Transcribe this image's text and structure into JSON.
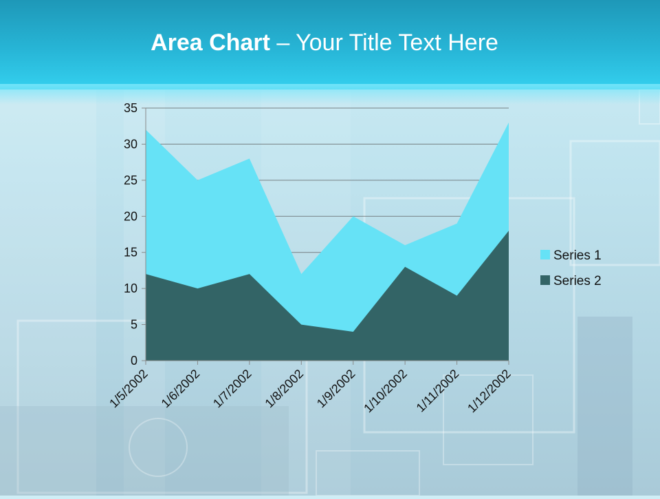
{
  "slide": {
    "title_bold": "Area Chart",
    "title_rest": " – Your Title Text Here"
  },
  "colors": {
    "series1": "#66e2f6",
    "series2": "#336466",
    "grid": "#555555",
    "axis": "#888888"
  },
  "chart_data": {
    "type": "area",
    "categories": [
      "1/5/2002",
      "1/6/2002",
      "1/7/2002",
      "1/8/2002",
      "1/9/2002",
      "1/10/2002",
      "1/11/2002",
      "1/12/2002"
    ],
    "series": [
      {
        "name": "Series 1",
        "values": [
          32,
          25,
          28,
          12,
          20,
          16,
          19,
          33
        ]
      },
      {
        "name": "Series 2",
        "values": [
          12,
          10,
          12,
          5,
          4,
          13,
          9,
          18
        ]
      }
    ],
    "ylim": [
      0,
      35
    ],
    "yticks": [
      0,
      5,
      10,
      15,
      20,
      25,
      30,
      35
    ],
    "grid": true,
    "legend": "right"
  }
}
